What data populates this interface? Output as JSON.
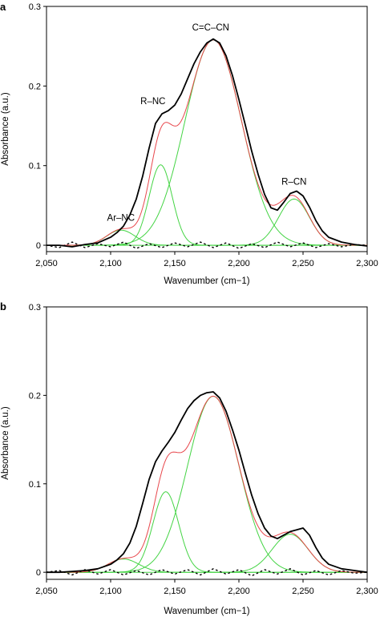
{
  "chart_data": [
    {
      "panel_label": "a",
      "type": "line",
      "xlabel": "Wavenumber (cm−1)",
      "ylabel": "Absorbance (a.u.)",
      "xlim": [
        2050,
        2300
      ],
      "ylim": [
        -0.008,
        0.3
      ],
      "xticks": [
        2050,
        2100,
        2150,
        2200,
        2250,
        2300
      ],
      "xtick_labels": [
        "2,050",
        "2,100",
        "2,150",
        "2,200",
        "2,250",
        "2,300"
      ],
      "yticks": [
        0,
        0.1,
        0.2,
        0.3
      ],
      "ytick_labels": [
        "0",
        "0.1",
        "0.2",
        "0.3"
      ],
      "annotations": [
        {
          "text": "Ar–NC",
          "x": 2108,
          "y": 0.031
        },
        {
          "text": "R–NC",
          "x": 2133,
          "y": 0.177
        },
        {
          "text": "C=C–CN",
          "x": 2178,
          "y": 0.27
        },
        {
          "text": "R–CN",
          "x": 2243,
          "y": 0.076
        }
      ],
      "colors": {
        "measured": "#000000",
        "fit": "#e8474c",
        "components": "#44d444",
        "residual": "#000000"
      },
      "components": [
        {
          "center": 2108,
          "amplitude": 0.019,
          "sigma": 11
        },
        {
          "center": 2139,
          "amplitude": 0.101,
          "sigma": 9
        },
        {
          "center": 2180,
          "amplitude": 0.258,
          "sigma": 22
        },
        {
          "center": 2243,
          "amplitude": 0.058,
          "sigma": 12
        }
      ],
      "series": [
        {
          "x": [
            2050,
            2060,
            2070,
            2080,
            2090,
            2100,
            2105,
            2110,
            2115,
            2120,
            2125,
            2130,
            2135,
            2140,
            2145,
            2150,
            2155,
            2160,
            2165,
            2170,
            2175,
            2180,
            2185,
            2190,
            2195,
            2200,
            2205,
            2210,
            2215,
            2220,
            2225,
            2230,
            2235,
            2240,
            2245,
            2250,
            2255,
            2260,
            2265,
            2270,
            2280,
            2290,
            2300
          ],
          "values": [
            0,
            0,
            -0.002,
            0.001,
            0.003,
            0.01,
            0.016,
            0.024,
            0.038,
            0.058,
            0.087,
            0.122,
            0.153,
            0.165,
            0.169,
            0.176,
            0.19,
            0.209,
            0.228,
            0.243,
            0.254,
            0.259,
            0.254,
            0.238,
            0.213,
            0.183,
            0.151,
            0.118,
            0.089,
            0.064,
            0.047,
            0.044,
            0.054,
            0.065,
            0.068,
            0.062,
            0.048,
            0.031,
            0.018,
            0.01,
            0.004,
            0.001,
            -0.001
          ]
        },
        {
          "x": [
            2050,
            2060,
            2070,
            2080,
            2090,
            2100,
            2110,
            2120,
            2130,
            2140,
            2150,
            2160,
            2170,
            2180,
            2190,
            2200,
            2210,
            2220,
            2230,
            2240,
            2250,
            2260,
            2270,
            2280,
            2290,
            2300
          ],
          "values": [
            0,
            -0.003,
            0.004,
            -0.003,
            0.002,
            -0.002,
            0.004,
            -0.004,
            0.002,
            -0.003,
            0.003,
            -0.002,
            0.004,
            -0.003,
            0.003,
            -0.004,
            0.002,
            -0.003,
            0.004,
            -0.002,
            0.003,
            -0.003,
            0.002,
            -0.002,
            0.001,
            0
          ]
        }
      ]
    },
    {
      "panel_label": "b",
      "type": "line",
      "xlabel": "Wavenumber (cm−1)",
      "ylabel": "Absorbance (a.u.)",
      "xlim": [
        2050,
        2300
      ],
      "ylim": [
        -0.008,
        0.3
      ],
      "xticks": [
        2050,
        2100,
        2150,
        2200,
        2250,
        2300
      ],
      "xtick_labels": [
        "2,050",
        "2,100",
        "2,150",
        "2,200",
        "2,250",
        "2,300"
      ],
      "yticks": [
        0,
        0.1,
        0.2,
        0.3
      ],
      "ytick_labels": [
        "0",
        "0.1",
        "0.2",
        "0.3"
      ],
      "colors": {
        "measured": "#000000",
        "fit": "#e8474c",
        "components": "#44d444",
        "residual": "#000000"
      },
      "components": [
        {
          "center": 2110,
          "amplitude": 0.015,
          "sigma": 12
        },
        {
          "center": 2143,
          "amplitude": 0.091,
          "sigma": 10
        },
        {
          "center": 2180,
          "amplitude": 0.199,
          "sigma": 20
        },
        {
          "center": 2240,
          "amplitude": 0.043,
          "sigma": 14
        }
      ],
      "series": [
        {
          "x": [
            2050,
            2060,
            2070,
            2080,
            2090,
            2100,
            2105,
            2110,
            2115,
            2120,
            2125,
            2130,
            2135,
            2140,
            2145,
            2150,
            2155,
            2160,
            2165,
            2170,
            2175,
            2180,
            2185,
            2190,
            2195,
            2200,
            2205,
            2210,
            2215,
            2220,
            2225,
            2230,
            2235,
            2240,
            2245,
            2250,
            2255,
            2260,
            2265,
            2270,
            2280,
            2290,
            2300
          ],
          "values": [
            0,
            0,
            0.001,
            0.002,
            0.004,
            0.009,
            0.014,
            0.021,
            0.033,
            0.052,
            0.078,
            0.105,
            0.125,
            0.137,
            0.147,
            0.158,
            0.172,
            0.185,
            0.194,
            0.2,
            0.203,
            0.204,
            0.197,
            0.182,
            0.161,
            0.138,
            0.112,
            0.087,
            0.066,
            0.05,
            0.041,
            0.038,
            0.042,
            0.046,
            0.048,
            0.05,
            0.042,
            0.028,
            0.016,
            0.009,
            0.004,
            0.002,
            0
          ]
        },
        {
          "x": [
            2050,
            2060,
            2070,
            2080,
            2090,
            2100,
            2110,
            2120,
            2130,
            2140,
            2150,
            2160,
            2170,
            2180,
            2190,
            2200,
            2210,
            2220,
            2230,
            2240,
            2250,
            2260,
            2270,
            2280,
            2290,
            2300
          ],
          "values": [
            0,
            0.002,
            -0.003,
            0.003,
            -0.002,
            0.003,
            -0.003,
            0.002,
            -0.003,
            0.003,
            -0.002,
            0.003,
            -0.003,
            0.004,
            -0.002,
            0.003,
            -0.004,
            0.003,
            -0.002,
            0.004,
            -0.003,
            0.002,
            -0.003,
            0.002,
            -0.001,
            0
          ]
        }
      ]
    }
  ]
}
